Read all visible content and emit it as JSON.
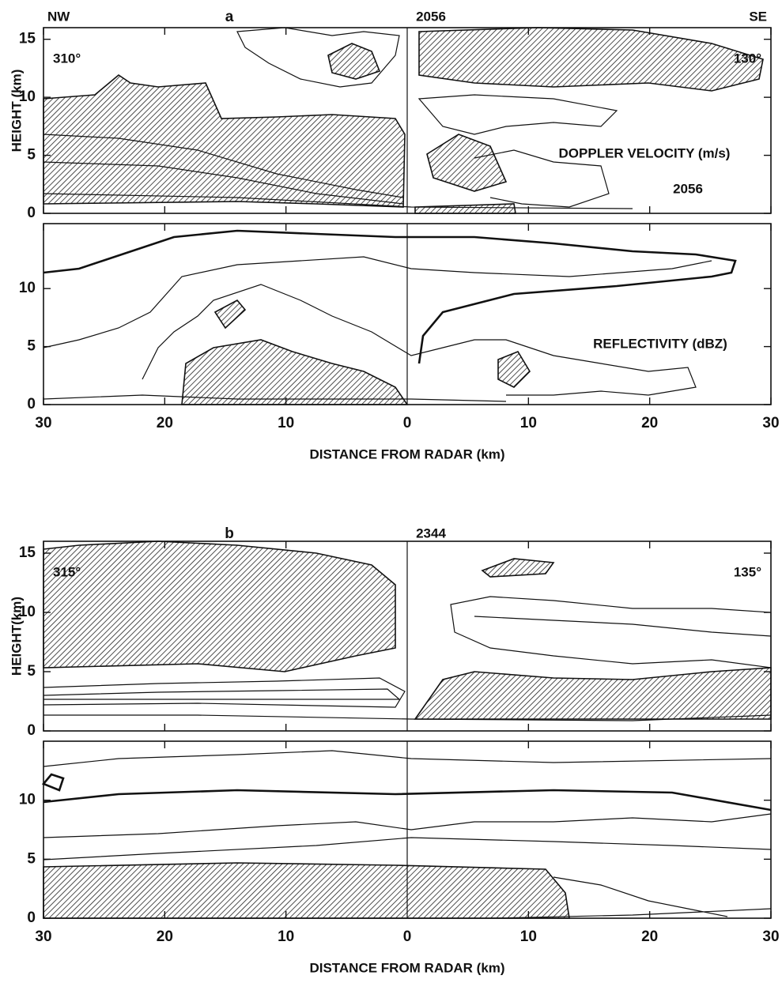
{
  "chart_data": [
    {
      "type": "contour",
      "label": "a",
      "time": "2056",
      "left_direction": "NW",
      "right_direction": "SE",
      "left_azimuth": "310°",
      "right_azimuth": "130°",
      "field": "DOPPLER VELOCITY (m/s)",
      "field_time": "2056",
      "ylabel": "HEIGHT (km)",
      "xlim": [
        -30,
        30
      ],
      "ylim": [
        0,
        16
      ],
      "xticks": [
        -30,
        -20,
        -10,
        0,
        10,
        20,
        30
      ],
      "yticks": [
        0,
        5,
        10,
        15
      ],
      "hatch_color": "#222222"
    },
    {
      "type": "contour",
      "field": "REFLECTIVITY (dBZ)",
      "xlabel": "DISTANCE FROM RADAR (km)",
      "xlim": [
        -30,
        30
      ],
      "ylim": [
        0,
        15.6
      ],
      "xticks": [
        {
          "value": -30,
          "label": "30"
        },
        {
          "value": -20,
          "label": "20"
        },
        {
          "value": -10,
          "label": "10"
        },
        0,
        10,
        20,
        30
      ],
      "yticks": [
        0,
        5,
        10
      ],
      "hatch_color": "#222222"
    },
    {
      "type": "contour",
      "label": "b",
      "time": "2344",
      "left_azimuth": "315°",
      "right_azimuth": "135°",
      "ylabel": "HEIGHT(km)",
      "xlim": [
        -30,
        30
      ],
      "ylim": [
        0,
        16
      ],
      "xticks": [
        -30,
        -20,
        -10,
        0,
        10,
        20,
        30
      ],
      "yticks": [
        0,
        5,
        10,
        15
      ],
      "hatch_color": "#222222"
    },
    {
      "type": "contour",
      "xlabel": "DISTANCE FROM RADAR (km)",
      "xlim": [
        -30,
        30
      ],
      "ylim": [
        0,
        15
      ],
      "xticks": [
        {
          "value": -30,
          "label": "30"
        },
        {
          "value": -20,
          "label": "20"
        },
        {
          "value": -10,
          "label": "10"
        },
        0,
        10,
        20,
        30
      ],
      "yticks": [
        0,
        5,
        10
      ],
      "hatch_color": "#222222"
    }
  ]
}
